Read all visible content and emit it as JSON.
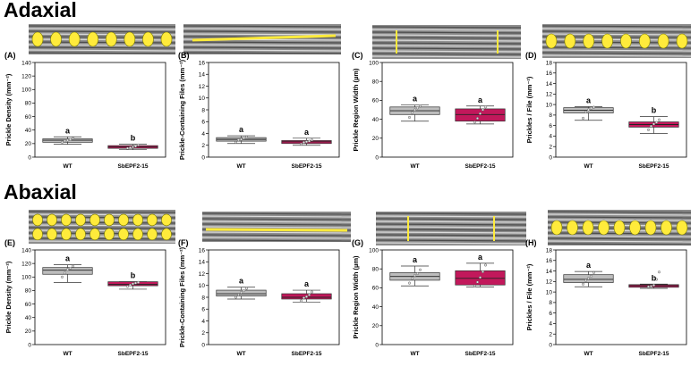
{
  "sections": [
    {
      "title": "Adaxial"
    },
    {
      "title": "Abaxial"
    }
  ],
  "colors": {
    "wt_box": "#bdbdbd",
    "mutant_box": "#c2185b",
    "marker_fill": "#e0e0e0",
    "overlay": "#ffeb3b"
  },
  "chart_data": [
    {
      "id": "A",
      "section": "Adaxial",
      "type": "box",
      "panel_label": "(A)",
      "ylabel": "Prickle Density (mm⁻²)",
      "ylim": [
        0,
        140
      ],
      "yticks": [
        0,
        20,
        40,
        60,
        80,
        100,
        120,
        140
      ],
      "categories": [
        "WT",
        "SbEPF2-15"
      ],
      "letters": [
        "a",
        "b"
      ],
      "boxes": [
        {
          "q1": 22,
          "median": 25,
          "q3": 27,
          "whislo": 19,
          "whishi": 30,
          "points": [
            22,
            24,
            25,
            26,
            28
          ]
        },
        {
          "q1": 13,
          "median": 15,
          "q3": 17,
          "whislo": 11,
          "whishi": 19,
          "points": [
            13,
            14,
            15,
            16,
            18
          ]
        }
      ]
    },
    {
      "id": "B",
      "section": "Adaxial",
      "type": "box",
      "panel_label": "(B)",
      "ylabel": "Prickle-Containing Files (mm⁻²)",
      "ylim": [
        0,
        16
      ],
      "yticks": [
        0,
        2,
        4,
        6,
        8,
        10,
        12,
        14,
        16
      ],
      "categories": [
        "WT",
        "SbEPF2-15"
      ],
      "letters": [
        "a",
        "a"
      ],
      "boxes": [
        {
          "q1": 2.7,
          "median": 3.0,
          "q3": 3.3,
          "whislo": 2.3,
          "whishi": 3.6,
          "points": [
            2.5,
            2.9,
            3.0,
            3.2,
            3.4
          ]
        },
        {
          "q1": 2.3,
          "median": 2.6,
          "q3": 2.8,
          "whislo": 2.0,
          "whishi": 3.2,
          "points": [
            2.2,
            2.5,
            2.6,
            2.7,
            2.9
          ]
        }
      ]
    },
    {
      "id": "C",
      "section": "Adaxial",
      "type": "box",
      "panel_label": "(C)",
      "ylabel": "Prickle Region Width (µm)",
      "ylim": [
        0,
        100
      ],
      "yticks": [
        0,
        20,
        40,
        60,
        80,
        100
      ],
      "categories": [
        "WT",
        "SbEPF2-15"
      ],
      "letters": [
        "a",
        "a"
      ],
      "boxes": [
        {
          "q1": 45,
          "median": 49,
          "q3": 53,
          "whislo": 38,
          "whishi": 55,
          "points": [
            42,
            47,
            50,
            52,
            54
          ]
        },
        {
          "q1": 38,
          "median": 45,
          "q3": 51,
          "whislo": 35,
          "whishi": 54,
          "points": [
            37,
            41,
            46,
            50,
            53
          ]
        }
      ]
    },
    {
      "id": "D",
      "section": "Adaxial",
      "type": "box",
      "panel_label": "(D)",
      "ylabel": "Prickles / File (mm⁻²)",
      "ylim": [
        0,
        18
      ],
      "yticks": [
        0,
        2,
        4,
        6,
        8,
        10,
        12,
        14,
        16,
        18
      ],
      "categories": [
        "WT",
        "SbEPF2-15"
      ],
      "letters": [
        "a",
        "b"
      ],
      "boxes": [
        {
          "q1": 8.4,
          "median": 8.9,
          "q3": 9.4,
          "whislo": 7.0,
          "whishi": 9.6,
          "points": [
            7.4,
            8.6,
            9.0,
            9.3,
            9.5
          ]
        },
        {
          "q1": 5.7,
          "median": 6.2,
          "q3": 6.7,
          "whislo": 4.5,
          "whishi": 7.7,
          "points": [
            5.2,
            5.9,
            6.3,
            6.6,
            7.1
          ]
        }
      ]
    },
    {
      "id": "E",
      "section": "Abaxial",
      "type": "box",
      "panel_label": "(E)",
      "ylabel": "Prickle Density (mm⁻²)",
      "ylim": [
        0,
        140
      ],
      "yticks": [
        0,
        20,
        40,
        60,
        80,
        100,
        120,
        140
      ],
      "categories": [
        "WT",
        "SbEPF2-15"
      ],
      "letters": [
        "a",
        "b"
      ],
      "boxes": [
        {
          "q1": 104,
          "median": 110,
          "q3": 114,
          "whislo": 92,
          "whishi": 118,
          "points": [
            100,
            106,
            111,
            113,
            116
          ]
        },
        {
          "q1": 87,
          "median": 89,
          "q3": 93,
          "whislo": 82,
          "whishi": 93,
          "points": [
            86,
            88,
            90,
            91,
            92
          ]
        }
      ]
    },
    {
      "id": "F",
      "section": "Abaxial",
      "type": "box",
      "panel_label": "(F)",
      "ylabel": "Prickle-Containing Files (mm⁻²)",
      "ylim": [
        0,
        16
      ],
      "yticks": [
        0,
        2,
        4,
        6,
        8,
        10,
        12,
        14,
        16
      ],
      "categories": [
        "WT",
        "SbEPF2-15"
      ],
      "letters": [
        "a",
        "a"
      ],
      "boxes": [
        {
          "q1": 8.2,
          "median": 8.6,
          "q3": 9.2,
          "whislo": 7.7,
          "whishi": 9.7,
          "points": [
            8.0,
            8.4,
            8.8,
            9.1,
            9.5
          ]
        },
        {
          "q1": 7.7,
          "median": 8.0,
          "q3": 8.6,
          "whislo": 7.2,
          "whishi": 9.2,
          "points": [
            7.4,
            7.9,
            8.1,
            8.4,
            8.9
          ]
        }
      ]
    },
    {
      "id": "G",
      "section": "Abaxial",
      "type": "box",
      "panel_label": "(G)",
      "ylabel": "Prickle Region Width (µm)",
      "ylim": [
        0,
        100
      ],
      "yticks": [
        0,
        20,
        40,
        60,
        80,
        100
      ],
      "categories": [
        "WT",
        "SbEPF2-15"
      ],
      "letters": [
        "a",
        "a"
      ],
      "boxes": [
        {
          "q1": 68,
          "median": 72,
          "q3": 76,
          "whislo": 62,
          "whishi": 83,
          "points": [
            65,
            70,
            73,
            75,
            79
          ]
        },
        {
          "q1": 63,
          "median": 70,
          "q3": 78,
          "whislo": 61,
          "whishi": 86,
          "points": [
            62,
            66,
            71,
            77,
            84
          ]
        }
      ]
    },
    {
      "id": "H",
      "section": "Abaxial",
      "type": "box",
      "panel_label": "(H)",
      "ylabel": "Prickles / File (mm⁻²)",
      "ylim": [
        0,
        18
      ],
      "yticks": [
        0,
        2,
        4,
        6,
        8,
        10,
        12,
        14,
        16,
        18
      ],
      "categories": [
        "WT",
        "SbEPF2-15"
      ],
      "letters": [
        "a",
        "b"
      ],
      "boxes": [
        {
          "q1": 11.8,
          "median": 12.4,
          "q3": 13.3,
          "whislo": 11.0,
          "whishi": 13.9,
          "points": [
            11.5,
            12.2,
            12.6,
            13.0,
            13.7
          ]
        },
        {
          "q1": 10.9,
          "median": 11.2,
          "q3": 11.4,
          "whislo": 10.7,
          "whishi": 11.5,
          "points": [
            11.0,
            11.1,
            11.3,
            12.4,
            13.8
          ]
        }
      ]
    }
  ]
}
